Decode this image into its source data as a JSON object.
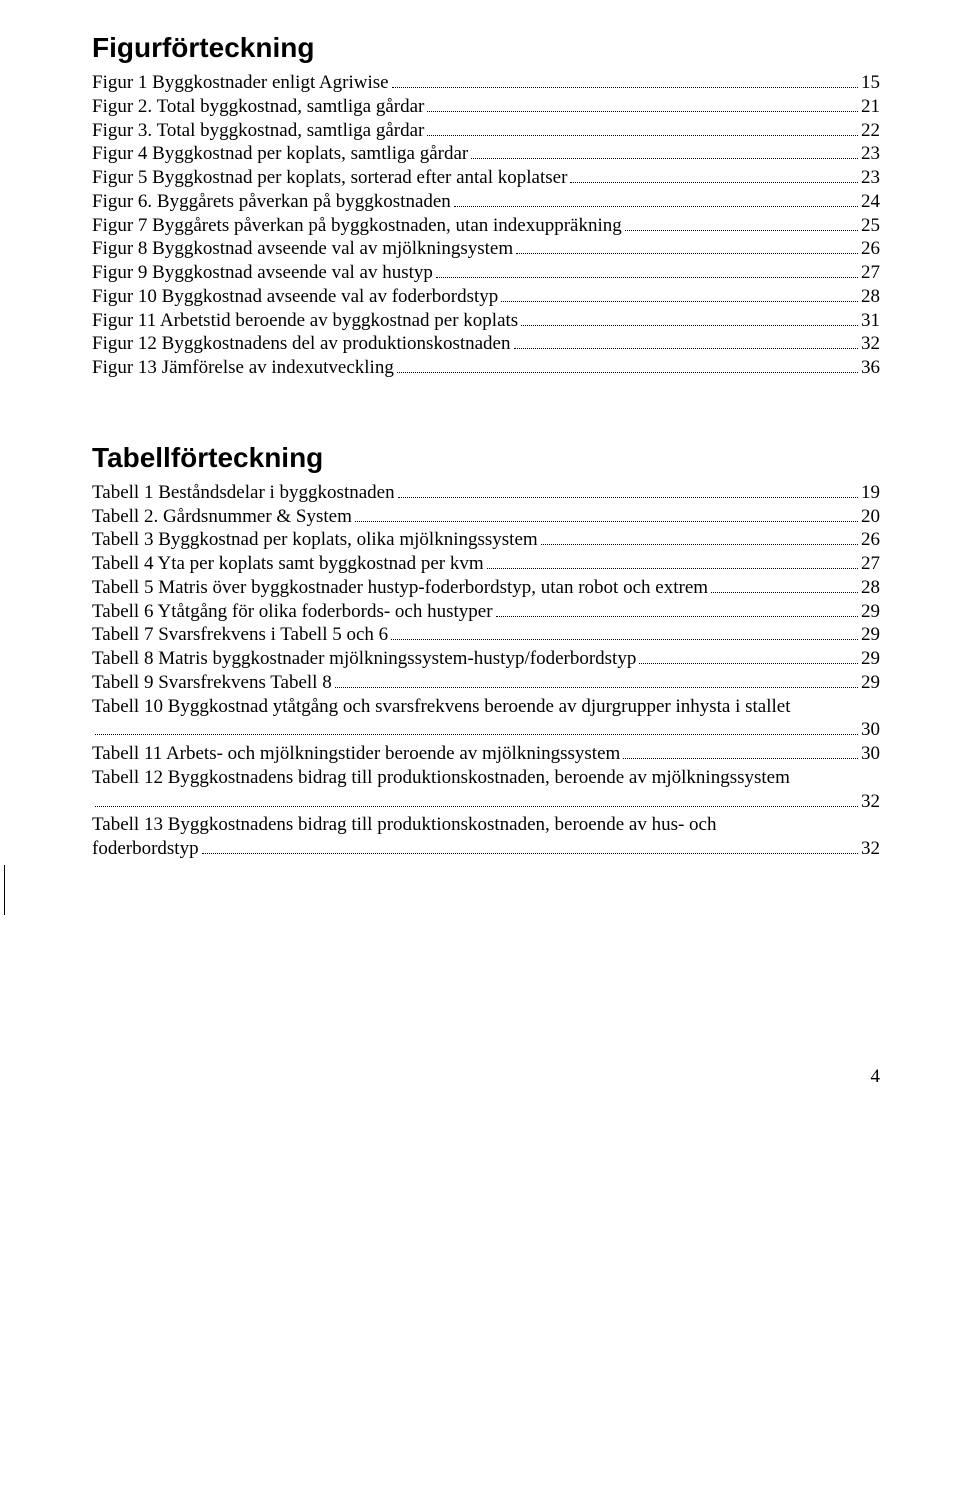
{
  "figures": {
    "heading": "Figurförteckning",
    "entries": [
      {
        "label": "Figur 1 Byggkostnader enligt Agriwise",
        "page": "15"
      },
      {
        "label": "Figur 2. Total byggkostnad, samtliga gårdar",
        "page": "21"
      },
      {
        "label": "Figur 3. Total byggkostnad, samtliga gårdar",
        "page": "22"
      },
      {
        "label": "Figur 4 Byggkostnad per koplats, samtliga gårdar",
        "page": "23"
      },
      {
        "label": "Figur 5 Byggkostnad per koplats, sorterad efter antal koplatser",
        "page": "23"
      },
      {
        "label": "Figur 6. Byggårets påverkan på byggkostnaden",
        "page": "24"
      },
      {
        "label": "Figur 7 Byggårets påverkan på byggkostnaden, utan indexuppräkning",
        "page": "25"
      },
      {
        "label": "Figur 8 Byggkostnad avseende val av mjölkningsystem",
        "page": "26"
      },
      {
        "label": "Figur 9 Byggkostnad avseende val av hustyp",
        "page": "27"
      },
      {
        "label": "Figur 10 Byggkostnad avseende val av foderbordstyp",
        "page": "28"
      },
      {
        "label": "Figur 11 Arbetstid beroende av byggkostnad per koplats",
        "page": "31"
      },
      {
        "label": "Figur 12 Byggkostnadens del av produktionskostnaden",
        "page": "32"
      },
      {
        "label": "Figur 13 Jämförelse av indexutveckling",
        "page": "36"
      }
    ]
  },
  "tables": {
    "heading": "Tabellförteckning",
    "entries": [
      {
        "label": "Tabell 1 Beståndsdelar i byggkostnaden",
        "page": "19"
      },
      {
        "label": "Tabell 2. Gårdsnummer & System",
        "page": "20"
      },
      {
        "label": "Tabell 3 Byggkostnad per koplats, olika mjölkningssystem",
        "page": "26"
      },
      {
        "label": "Tabell 4 Yta per koplats samt byggkostnad per kvm",
        "page": "27"
      },
      {
        "label": "Tabell 5 Matris över byggkostnader hustyp-foderbordstyp, utan robot och extrem",
        "page": "28"
      },
      {
        "label": "Tabell 6 Ytåtgång för olika foderbords- och hustyper",
        "page": "29"
      },
      {
        "label": "Tabell 7 Svarsfrekvens i Tabell 5 och 6",
        "page": "29"
      },
      {
        "label": "Tabell 8 Matris byggkostnader mjölkningssystem-hustyp/foderbordstyp",
        "page": "29"
      },
      {
        "label": "Tabell 9 Svarsfrekvens Tabell 8",
        "page": "29"
      },
      {
        "label": "Tabell 10 Byggkostnad ytåtgång och svarsfrekvens beroende av djurgrupper inhysta i stallet",
        "label2": "",
        "page": "30",
        "wrap": true
      },
      {
        "label": "Tabell 11 Arbets- och mjölkningstider beroende av mjölkningssystem",
        "page": "30"
      },
      {
        "label": "Tabell 12 Byggkostnadens bidrag till produktionskostnaden, beroende av mjölkningssystem",
        "label2": "",
        "page": "32",
        "wrap": true
      },
      {
        "label": "Tabell 13 Byggkostnadens bidrag till produktionskostnaden, beroende av hus- och",
        "label2": "foderbordstyp",
        "page": "32",
        "wrap": true
      }
    ]
  },
  "pageNumber": "4"
}
